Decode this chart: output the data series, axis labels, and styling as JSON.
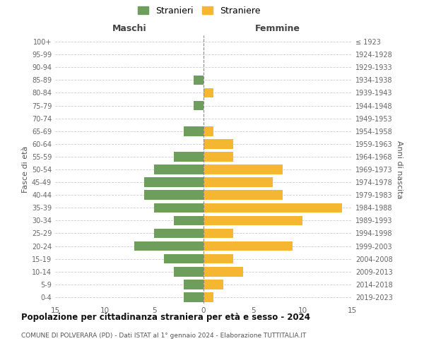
{
  "age_groups": [
    "0-4",
    "5-9",
    "10-14",
    "15-19",
    "20-24",
    "25-29",
    "30-34",
    "35-39",
    "40-44",
    "45-49",
    "50-54",
    "55-59",
    "60-64",
    "65-69",
    "70-74",
    "75-79",
    "80-84",
    "85-89",
    "90-94",
    "95-99",
    "100+"
  ],
  "birth_years": [
    "2019-2023",
    "2014-2018",
    "2009-2013",
    "2004-2008",
    "1999-2003",
    "1994-1998",
    "1989-1993",
    "1984-1988",
    "1979-1983",
    "1974-1978",
    "1969-1973",
    "1964-1968",
    "1959-1963",
    "1954-1958",
    "1949-1953",
    "1944-1948",
    "1939-1943",
    "1934-1938",
    "1929-1933",
    "1924-1928",
    "≤ 1923"
  ],
  "maschi": [
    2,
    2,
    3,
    4,
    7,
    5,
    3,
    5,
    6,
    6,
    5,
    3,
    0,
    2,
    0,
    1,
    0,
    1,
    0,
    0,
    0
  ],
  "femmine": [
    1,
    2,
    4,
    3,
    9,
    3,
    10,
    14,
    8,
    7,
    8,
    3,
    3,
    1,
    0,
    0,
    1,
    0,
    0,
    0,
    0
  ],
  "color_maschi": "#6d9e5b",
  "color_femmine": "#f5b731",
  "background_color": "#ffffff",
  "grid_color": "#cccccc",
  "title": "Popolazione per cittadinanza straniera per età e sesso - 2024",
  "subtitle": "COMUNE DI POLVERARA (PD) - Dati ISTAT al 1° gennaio 2024 - Elaborazione TUTTITALIA.IT",
  "legend_maschi": "Stranieri",
  "legend_femmine": "Straniere",
  "xlabel_left": "Maschi",
  "xlabel_right": "Femmine",
  "ylabel_left": "Fasce di età",
  "ylabel_right": "Anni di nascita",
  "xlim": 15
}
